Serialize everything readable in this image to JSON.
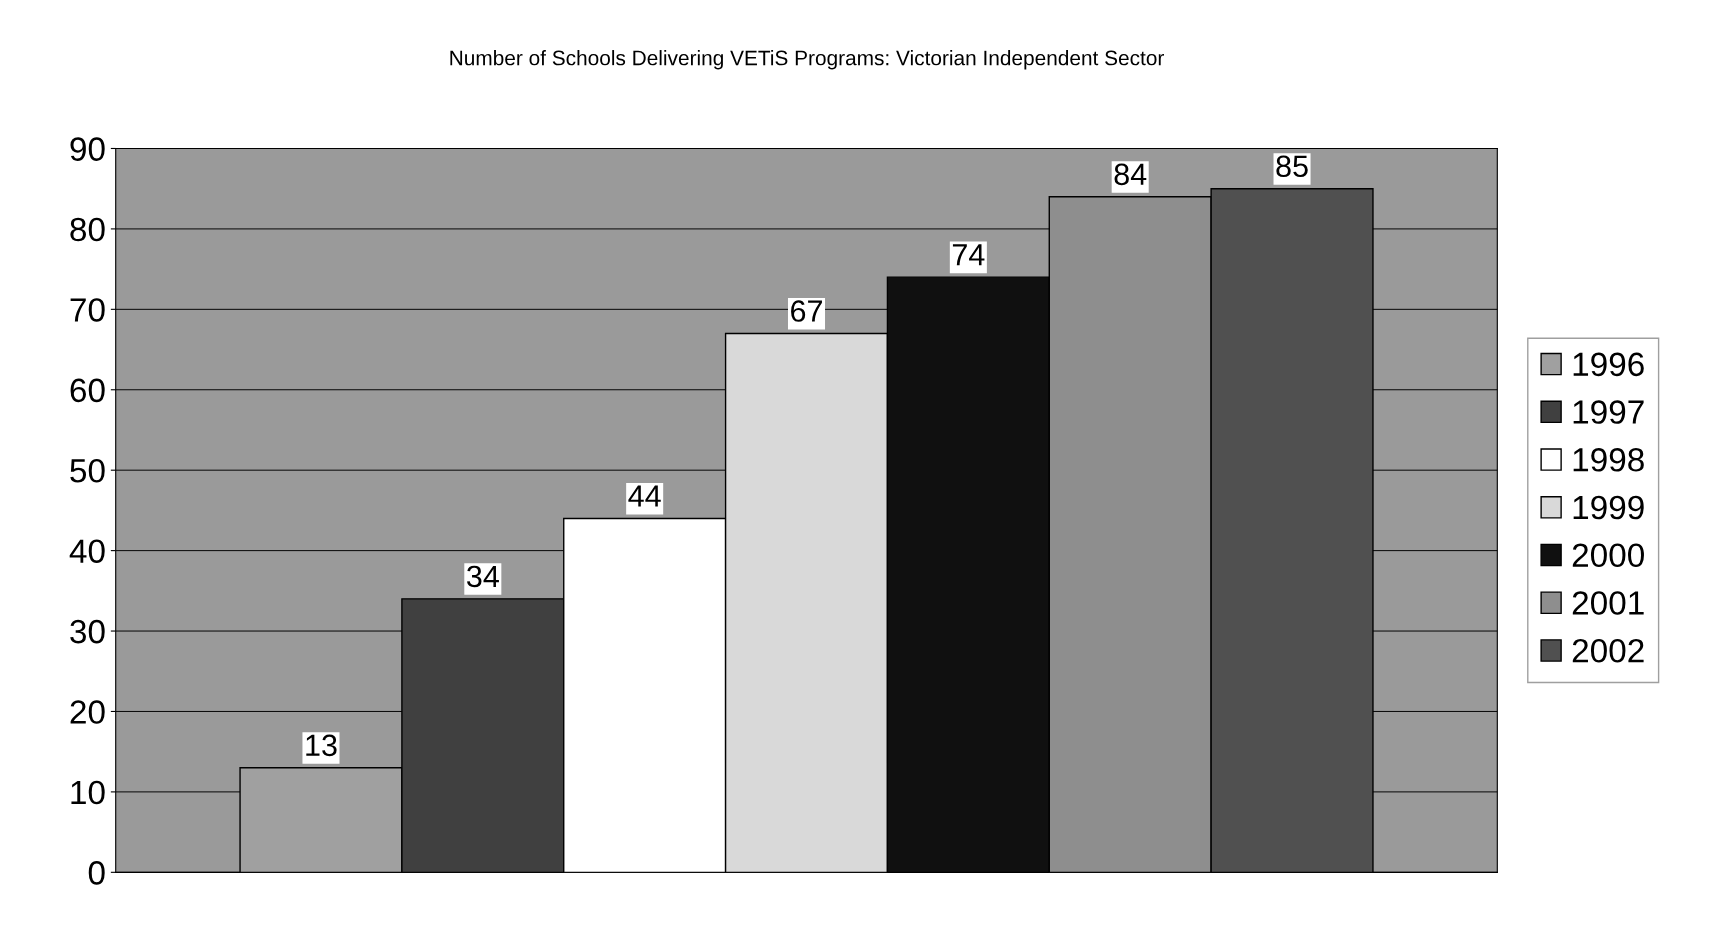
{
  "chart_data": {
    "type": "bar",
    "title": "Number of Schools Delivering VETiS Programs: Victorian Independent Sector",
    "categories": [
      null
    ],
    "series": [
      {
        "name": "1996",
        "color": "#a0a0a0",
        "values": [
          13
        ]
      },
      {
        "name": "1997",
        "color": "#404040",
        "values": [
          34
        ]
      },
      {
        "name": "1998",
        "color": "#ffffff",
        "values": [
          44
        ]
      },
      {
        "name": "1999",
        "color": "#d9d9d9",
        "values": [
          67
        ]
      },
      {
        "name": "2000",
        "color": "#101010",
        "values": [
          74
        ]
      },
      {
        "name": "2001",
        "color": "#8e8e8e",
        "values": [
          84
        ]
      },
      {
        "name": "2002",
        "color": "#505050",
        "values": [
          85
        ]
      }
    ],
    "ylim": [
      0,
      90
    ],
    "yticks": [
      0,
      10,
      20,
      30,
      40,
      50,
      60,
      70,
      80,
      90
    ],
    "grid": "y",
    "legend": "right",
    "data_labels": true
  }
}
